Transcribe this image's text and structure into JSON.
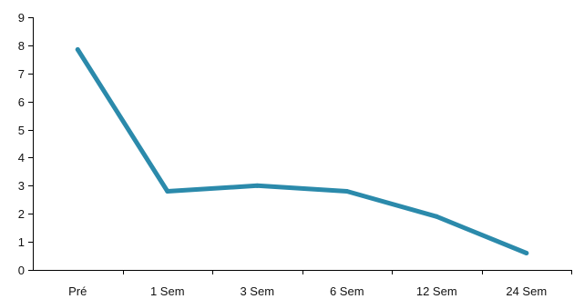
{
  "chart_data": {
    "type": "line",
    "categories": [
      "Pré",
      "1 Sem",
      "3 Sem",
      "6 Sem",
      "12 Sem",
      "24 Sem"
    ],
    "series": [
      {
        "values": [
          7.85,
          2.8,
          3.0,
          2.8,
          1.9,
          0.6
        ],
        "color": "#2b8aab"
      }
    ],
    "ylim": [
      0,
      9
    ],
    "yticks": [
      "0",
      "1",
      "2",
      "3",
      "4",
      "5",
      "6",
      "7",
      "8",
      "9"
    ],
    "title": "",
    "xlabel": "",
    "ylabel": "",
    "grid": false,
    "legend": "none"
  }
}
